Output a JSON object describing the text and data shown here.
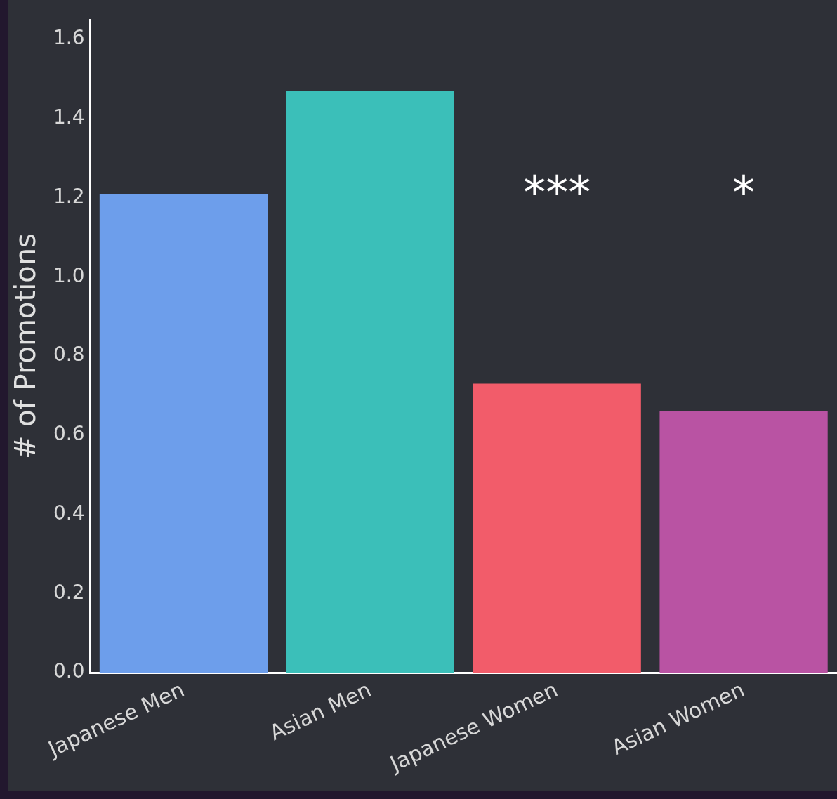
{
  "chart_data": {
    "type": "bar",
    "ylabel": "# of Promotions",
    "categories": [
      "Japanese Men",
      "Asian Men",
      "Japanese Women",
      "Asian Women"
    ],
    "values": [
      1.21,
      1.47,
      0.73,
      0.66
    ],
    "colors": [
      "#6d9eeb",
      "#3bbfb9",
      "#f25c6a",
      "#b953a3"
    ],
    "ylim": [
      0,
      1.65
    ],
    "yticks": [
      {
        "value": 0,
        "label": "0.0"
      },
      {
        "value": 0.2,
        "label": "0.2"
      },
      {
        "value": 0.4,
        "label": "0.4"
      },
      {
        "value": 0.6,
        "label": "0.6"
      },
      {
        "value": 0.8,
        "label": "0.8"
      },
      {
        "value": 1,
        "label": "1.0"
      },
      {
        "value": 1.2,
        "label": "1.2"
      },
      {
        "value": 1.4,
        "label": "1.4"
      },
      {
        "value": 1.6,
        "label": "1.6"
      }
    ],
    "annotations": [
      "***",
      "*"
    ],
    "grid": false,
    "legend": false
  }
}
